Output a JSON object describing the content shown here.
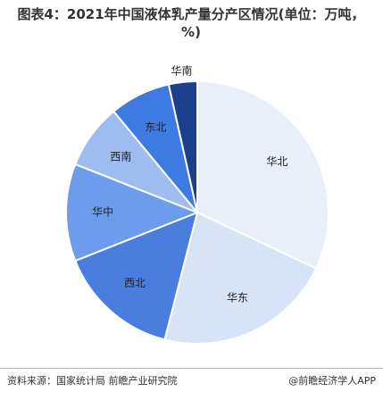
{
  "chart_data": {
    "type": "pie",
    "title": "图表4：2021年中国液体乳产量分产区情况(单位：万吨，%)",
    "categories": [
      "华北",
      "华东",
      "西北",
      "华中",
      "西南",
      "东北",
      "华南"
    ],
    "values": [
      32,
      22,
      15,
      12,
      8,
      7.5,
      3.5
    ],
    "colors": [
      "#e9eff9",
      "#d7e3f6",
      "#4a7ddd",
      "#6c9ceb",
      "#9dbdf0",
      "#3d7be2",
      "#1c3f8d"
    ]
  },
  "footer": {
    "source": "资料来源：国家统计局 前瞻产业研究院",
    "brand": "@前瞻经济学人APP"
  }
}
